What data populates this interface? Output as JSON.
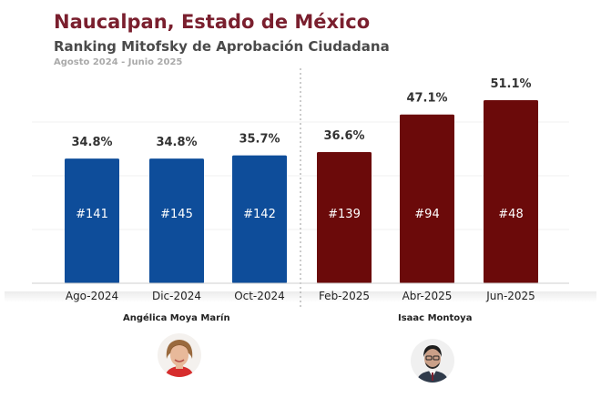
{
  "header": {
    "title": "Naucalpan, Estado de México",
    "subtitle": "Ranking Mitofsky de Aprobación Ciudadana",
    "period": "Agosto 2024 - Junio 2025"
  },
  "colors": {
    "blue": "#0e4d9a",
    "maroon": "#6b0a0a",
    "title": "#7a1f2e"
  },
  "chart_data": {
    "type": "bar",
    "categories": [
      "Ago-2024",
      "Dic-2024",
      "Oct-2024",
      "Feb-2025",
      "Abr-2025",
      "Jun-2025"
    ],
    "values": [
      34.8,
      34.8,
      35.7,
      36.6,
      47.1,
      51.1
    ],
    "value_labels": [
      "34.8%",
      "34.8%",
      "35.7%",
      "36.6%",
      "47.1%",
      "51.1%"
    ],
    "rank_labels": [
      "#141",
      "#145",
      "#142",
      "#139",
      "#94",
      "#48"
    ],
    "bar_colors": [
      "#0e4d9a",
      "#0e4d9a",
      "#0e4d9a",
      "#6b0a0a",
      "#6b0a0a",
      "#6b0a0a"
    ],
    "ylim": [
      0,
      60
    ],
    "grid": true
  },
  "people": [
    {
      "name": "Angélica Moya Marín",
      "avatar_icon": "woman-portrait-icon"
    },
    {
      "name": "Isaac Montoya",
      "avatar_icon": "man-portrait-icon"
    }
  ]
}
